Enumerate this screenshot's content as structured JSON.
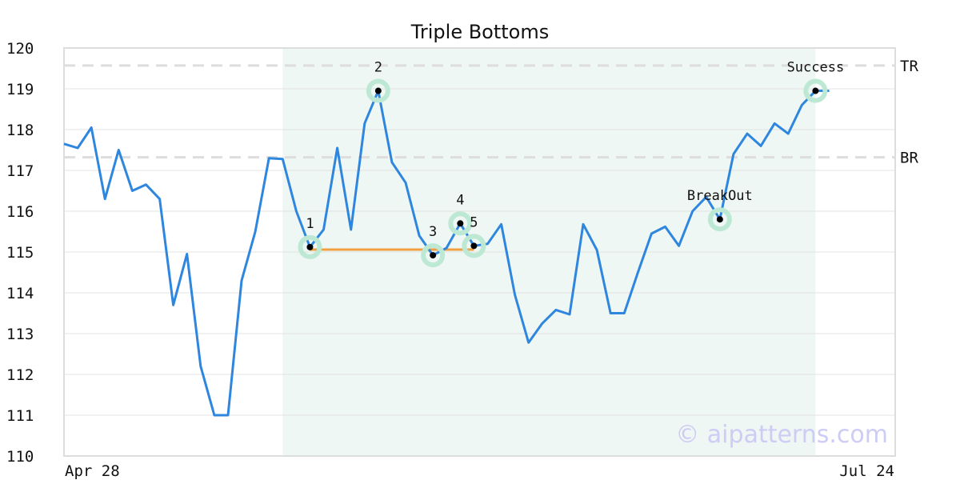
{
  "chart_data": {
    "type": "line",
    "title": "Triple Bottoms",
    "xlabel": "",
    "ylabel": "",
    "ylim": [
      110,
      120
    ],
    "yticks": [
      110,
      111,
      112,
      113,
      114,
      115,
      116,
      117,
      118,
      119,
      120
    ],
    "x_tick_labels": [
      "Apr 28",
      "Jul 24"
    ],
    "grid": "horizontal",
    "series": [
      {
        "color": "#2e86de",
        "values": [
          117.65,
          117.55,
          118.05,
          116.3,
          117.5,
          116.5,
          116.65,
          116.3,
          113.7,
          114.95,
          112.2,
          111.0,
          111.0,
          114.3,
          115.5,
          117.3,
          117.28,
          116.0,
          115.12,
          115.55,
          117.55,
          115.55,
          118.15,
          118.95,
          117.2,
          116.7,
          115.4,
          114.92,
          115.1,
          115.7,
          115.15,
          115.2,
          115.68,
          113.95,
          112.78,
          113.25,
          113.58,
          113.47,
          115.68,
          115.05,
          113.5,
          113.5,
          114.5,
          115.45,
          115.62,
          115.15,
          116.0,
          116.35,
          115.8,
          117.4,
          117.9,
          117.6,
          118.15,
          117.9,
          118.6,
          118.95,
          118.95
        ]
      }
    ],
    "pattern_region": {
      "start_index": 16,
      "end_index": 55,
      "color": "#eef7f3"
    },
    "levels": [
      {
        "label": "TR",
        "value": 119.57
      },
      {
        "label": "BR",
        "value": 117.32
      }
    ],
    "neckline": {
      "from_index": 18,
      "to_index": 30,
      "value": 115.06,
      "color": "#f0a040"
    },
    "points": [
      {
        "label": "1",
        "index": 18
      },
      {
        "label": "2",
        "index": 23
      },
      {
        "label": "3",
        "index": 27
      },
      {
        "label": "4",
        "index": 29
      },
      {
        "label": "5",
        "index": 30
      },
      {
        "label": "BreakOut",
        "index": 48
      },
      {
        "label": "Success",
        "index": 55
      }
    ],
    "watermark": "© aipatterns.com"
  }
}
